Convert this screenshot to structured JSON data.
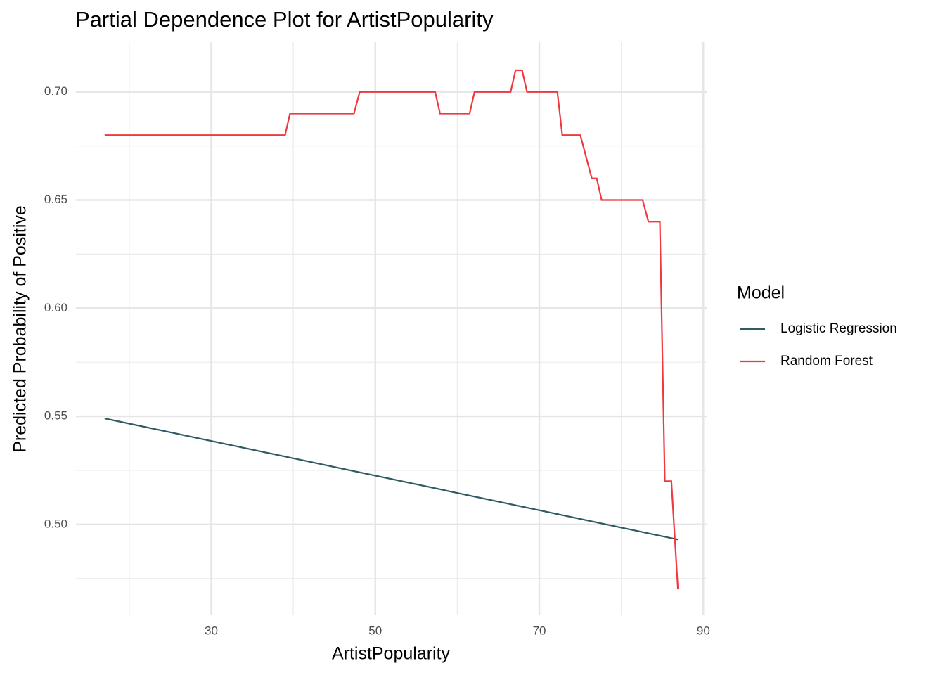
{
  "chart_data": {
    "type": "line",
    "title": "Partial Dependence Plot for ArtistPopularity",
    "x_label": "ArtistPopularity",
    "y_label": "Predicted Probability of Positive",
    "legend_title": "Model",
    "legend_position": "right",
    "grid": true,
    "xlim": [
      13.5,
      90.4
    ],
    "ylim": [
      0.458,
      0.723
    ],
    "xticks": [
      30,
      50,
      70,
      90
    ],
    "xminorticks": [
      20,
      40,
      60,
      80
    ],
    "yticks": [
      {
        "value": 0.5,
        "label": "0.50"
      },
      0.55,
      {
        "value": 0.6,
        "label": "0.60"
      },
      0.65,
      {
        "value": 0.7,
        "label": "0.70"
      }
    ],
    "yminorticks": [
      0.475,
      0.525,
      0.575,
      0.625,
      0.675
    ],
    "series": [
      {
        "name": "Logistic Regression",
        "color": "#2f5b62",
        "x": [
          17.0,
          86.9
        ],
        "values": [
          0.549,
          0.493
        ]
      },
      {
        "name": "Random Forest",
        "color": "#f0393f",
        "x": [
          17.0,
          39.0,
          39.6,
          47.4,
          48.1,
          57.3,
          57.9,
          61.5,
          62.1,
          66.5,
          67.1,
          67.9,
          68.5,
          72.2,
          72.8,
          75.0,
          76.4,
          77.0,
          77.6,
          82.6,
          83.3,
          84.7,
          85.3,
          86.1,
          86.9
        ],
        "values": [
          0.68,
          0.68,
          0.69,
          0.69,
          0.7,
          0.7,
          0.69,
          0.69,
          0.7,
          0.7,
          0.71,
          0.71,
          0.7,
          0.7,
          0.68,
          0.68,
          0.66,
          0.66,
          0.65,
          0.65,
          0.64,
          0.64,
          0.52,
          0.52,
          0.47
        ]
      }
    ]
  }
}
